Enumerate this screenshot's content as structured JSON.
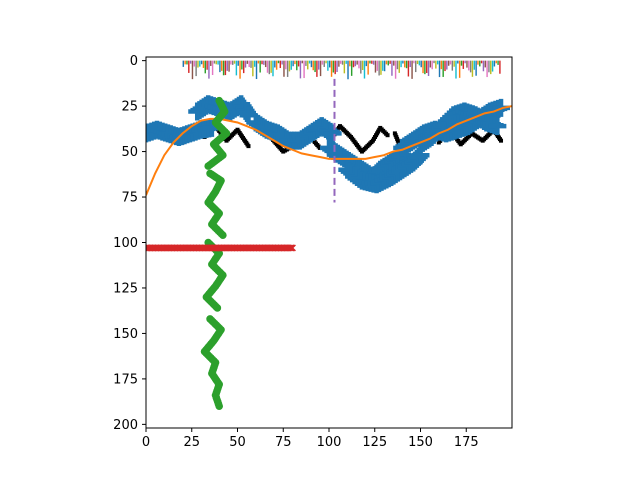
{
  "chart_data": {
    "type": "scatter",
    "title": "",
    "xlabel": "",
    "ylabel": "",
    "xlim": [
      0,
      200
    ],
    "ylim": [
      202,
      -2
    ],
    "y_inverted": true,
    "grid": false,
    "xticks": [
      0,
      25,
      50,
      75,
      100,
      125,
      150,
      175
    ],
    "yticks": [
      0,
      25,
      50,
      75,
      100,
      125,
      150,
      175,
      200
    ],
    "colors": {
      "blue": "#1f77b4",
      "orange": "#ff7f0e",
      "green": "#2ca02c",
      "red": "#d62728",
      "purple": "#9467bd",
      "pink": "#e377c2",
      "brown": "#8c564b",
      "gray": "#7f7f7f",
      "olive": "#bcbd22",
      "cyan": "#17becf",
      "black": "#000000"
    },
    "black_stroke_glyph": {
      "marker": "square",
      "strokes": [
        [
          [
            20,
            45
          ],
          [
            26,
            37
          ],
          [
            32,
            42
          ],
          [
            38,
            36
          ],
          [
            44,
            44
          ],
          [
            50,
            38
          ],
          [
            56,
            47
          ]
        ],
        [
          [
            68,
            42
          ],
          [
            75,
            50
          ],
          [
            82,
            46
          ],
          [
            88,
            40
          ],
          [
            95,
            48
          ]
        ],
        [
          [
            100,
            45
          ],
          [
            106,
            36
          ],
          [
            112,
            42
          ],
          [
            118,
            50
          ],
          [
            124,
            44
          ],
          [
            128,
            37
          ],
          [
            132,
            41
          ]
        ],
        [
          [
            136,
            40
          ],
          [
            140,
            50
          ],
          [
            146,
            55
          ],
          [
            152,
            46
          ],
          [
            156,
            38
          ]
        ],
        [
          [
            160,
            45
          ],
          [
            166,
            38
          ],
          [
            172,
            46
          ],
          [
            178,
            40
          ],
          [
            184,
            44
          ],
          [
            190,
            38
          ],
          [
            194,
            44
          ]
        ]
      ]
    },
    "blue_plus_glyph": {
      "marker": "plus",
      "color": "blue",
      "strokes": [
        [
          [
            0,
            40
          ],
          [
            6,
            38
          ],
          [
            12,
            40
          ],
          [
            18,
            42
          ],
          [
            24,
            40
          ],
          [
            30,
            38
          ],
          [
            36,
            37
          ]
        ],
        [
          [
            28,
            28
          ],
          [
            34,
            24
          ],
          [
            40,
            26
          ],
          [
            46,
            28
          ],
          [
            52,
            24
          ],
          [
            56,
            30
          ]
        ],
        [
          [
            60,
            34
          ],
          [
            66,
            38
          ],
          [
            72,
            40
          ],
          [
            78,
            44
          ],
          [
            84,
            44
          ],
          [
            90,
            40
          ],
          [
            96,
            36
          ],
          [
            102,
            40
          ]
        ],
        [
          [
            100,
            48
          ],
          [
            106,
            52
          ],
          [
            112,
            56
          ],
          [
            118,
            60
          ],
          [
            124,
            64
          ],
          [
            128,
            60
          ],
          [
            134,
            56
          ],
          [
            140,
            52
          ]
        ],
        [
          [
            140,
            48
          ],
          [
            146,
            44
          ],
          [
            152,
            40
          ],
          [
            158,
            38
          ],
          [
            164,
            40
          ],
          [
            170,
            38
          ],
          [
            176,
            36
          ],
          [
            182,
            32
          ],
          [
            188,
            28
          ],
          [
            194,
            26
          ]
        ],
        [
          [
            110,
            60
          ],
          [
            118,
            66
          ],
          [
            126,
            68
          ],
          [
            134,
            64
          ],
          [
            140,
            60
          ],
          [
            146,
            56
          ],
          [
            150,
            52
          ]
        ],
        [
          [
            150,
            46
          ],
          [
            156,
            42
          ],
          [
            162,
            36
          ],
          [
            168,
            30
          ],
          [
            174,
            28
          ],
          [
            180,
            30
          ],
          [
            186,
            34
          ],
          [
            192,
            36
          ]
        ]
      ]
    },
    "orange_curve": {
      "color": "orange",
      "points": [
        [
          0,
          74
        ],
        [
          5,
          62
        ],
        [
          10,
          52
        ],
        [
          15,
          45
        ],
        [
          20,
          40
        ],
        [
          25,
          36
        ],
        [
          30,
          33
        ],
        [
          35,
          32
        ],
        [
          40,
          32
        ],
        [
          45,
          33
        ],
        [
          50,
          34
        ],
        [
          55,
          36
        ],
        [
          60,
          38
        ],
        [
          65,
          41
        ],
        [
          70,
          44
        ],
        [
          75,
          47
        ],
        [
          80,
          49
        ],
        [
          85,
          51
        ],
        [
          90,
          52
        ],
        [
          95,
          53
        ],
        [
          100,
          54
        ],
        [
          105,
          54
        ],
        [
          110,
          54
        ],
        [
          115,
          54
        ],
        [
          120,
          54
        ],
        [
          125,
          53
        ],
        [
          130,
          52
        ],
        [
          135,
          50
        ],
        [
          140,
          49
        ],
        [
          145,
          47
        ],
        [
          150,
          45
        ],
        [
          155,
          43
        ],
        [
          160,
          40
        ],
        [
          165,
          38
        ],
        [
          170,
          35
        ],
        [
          175,
          33
        ],
        [
          180,
          31
        ],
        [
          185,
          29
        ],
        [
          190,
          28
        ],
        [
          195,
          26
        ],
        [
          200,
          25
        ]
      ]
    },
    "green_dot_glyph": {
      "marker": "circle",
      "color": "green",
      "strokes": [
        [
          [
            40,
            22
          ],
          [
            43,
            28
          ],
          [
            38,
            34
          ],
          [
            44,
            40
          ],
          [
            37,
            46
          ],
          [
            42,
            52
          ],
          [
            34,
            58
          ]
        ],
        [
          [
            35,
            62
          ],
          [
            41,
            66
          ],
          [
            38,
            72
          ],
          [
            34,
            78
          ],
          [
            40,
            84
          ],
          [
            36,
            90
          ],
          [
            42,
            96
          ]
        ],
        [
          [
            34,
            100
          ],
          [
            40,
            106
          ],
          [
            36,
            112
          ],
          [
            42,
            118
          ],
          [
            38,
            124
          ],
          [
            33,
            130
          ],
          [
            39,
            136
          ]
        ],
        [
          [
            35,
            142
          ],
          [
            41,
            148
          ],
          [
            37,
            154
          ],
          [
            32,
            160
          ],
          [
            38,
            166
          ],
          [
            36,
            172
          ],
          [
            40,
            178
          ],
          [
            38,
            184
          ],
          [
            40,
            190
          ]
        ]
      ]
    },
    "red_line": {
      "marker": "x",
      "color": "red",
      "y": 103,
      "x_start": 0,
      "x_end": 80
    },
    "purple_vline": {
      "color": "purple",
      "x": 103,
      "y_start": 10,
      "y_end": 78,
      "style": "dashed"
    },
    "top_bars": {
      "colors": [
        "blue",
        "orange",
        "green",
        "red",
        "purple",
        "brown",
        "pink",
        "gray",
        "olive",
        "cyan"
      ],
      "x_start": 20,
      "x_end": 193,
      "step": 1,
      "height_scale": 9
    }
  }
}
